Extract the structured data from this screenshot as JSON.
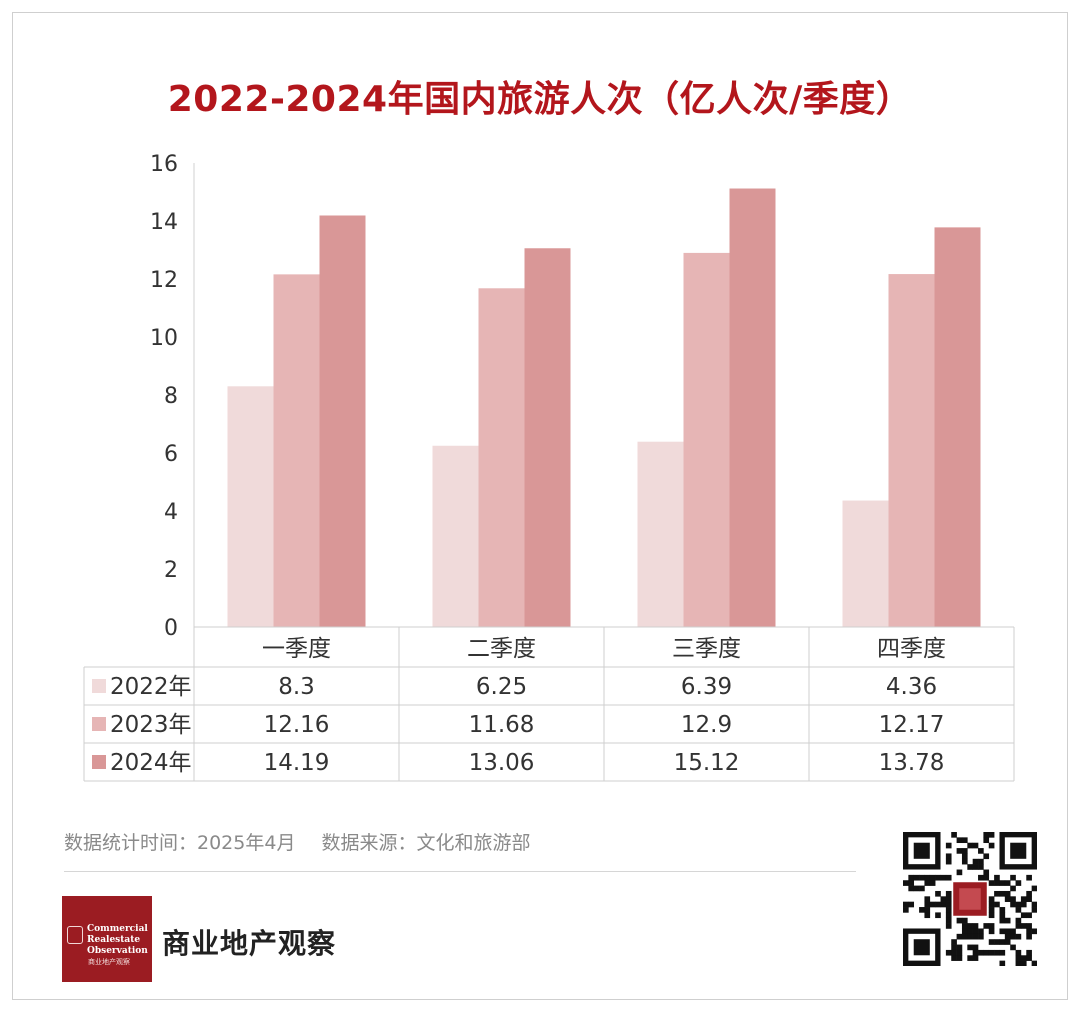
{
  "title": "2022-2024年国内旅游人次（亿人次/季度）",
  "chart_data": {
    "type": "bar",
    "categories": [
      "一季度",
      "二季度",
      "三季度",
      "四季度"
    ],
    "series": [
      {
        "name": "2022年",
        "values": [
          8.3,
          6.25,
          6.39,
          4.36
        ],
        "color": "#f0dada"
      },
      {
        "name": "2023年",
        "values": [
          12.16,
          11.68,
          12.9,
          12.17
        ],
        "color": "#e6b5b5"
      },
      {
        "name": "2024年",
        "values": [
          14.19,
          13.06,
          15.12,
          13.78
        ],
        "color": "#d99797"
      }
    ],
    "ylim": [
      0,
      16
    ],
    "yticks": [
      0,
      2,
      4,
      6,
      8,
      10,
      12,
      14,
      16
    ],
    "data_table": true,
    "grid": false
  },
  "footer": {
    "stat_time": "数据统计时间：2025年4月",
    "source": "数据来源：文化和旅游部"
  },
  "brand": {
    "name": "商业地产观察",
    "logo_lines": [
      "Commercial",
      "Realestate",
      "Observation"
    ],
    "logo_sub": "商业地产观察",
    "brand_color": "#9b1c22",
    "title_color": "#b3161c"
  }
}
